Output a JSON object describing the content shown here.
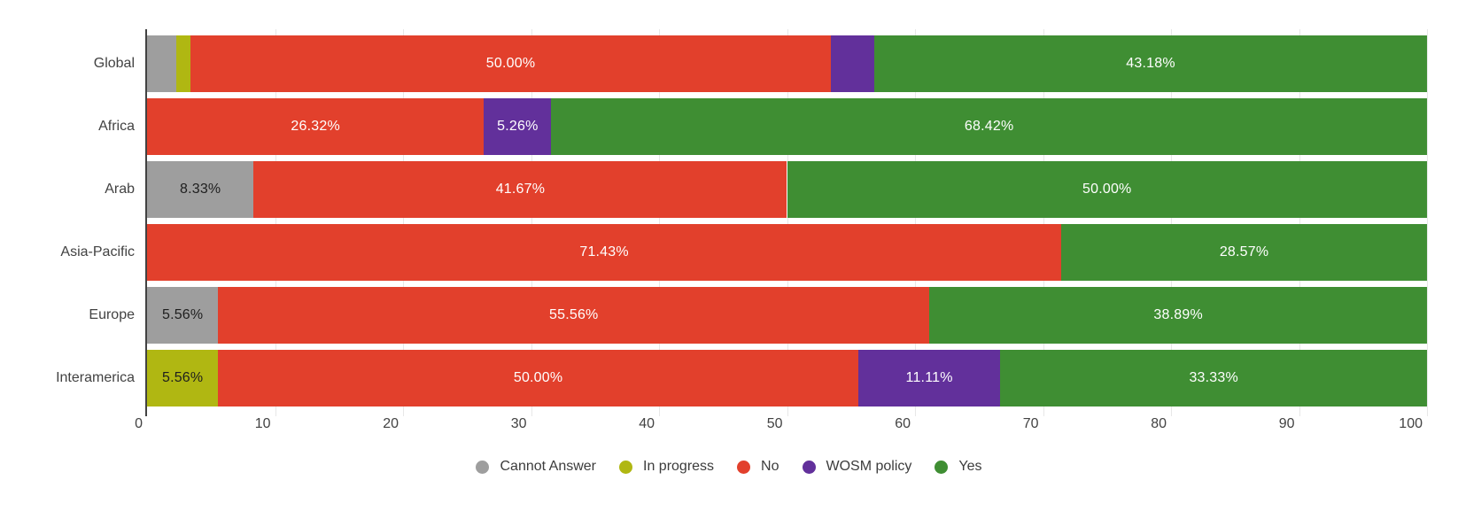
{
  "chart_data": {
    "type": "bar",
    "stacked": true,
    "orientation": "horizontal",
    "title": "",
    "categories": [
      "Global",
      "Africa",
      "Arab",
      "Asia-Pacific",
      "Europe",
      "Interamerica"
    ],
    "series": [
      {
        "name": "Cannot Answer",
        "color": "#9e9e9e",
        "label_text": "dark",
        "values": [
          2.27,
          0,
          8.33,
          0,
          5.56,
          0
        ]
      },
      {
        "name": "In progress",
        "color": "#b0b712",
        "label_text": "dark",
        "values": [
          1.14,
          0,
          0,
          0,
          0,
          5.56
        ]
      },
      {
        "name": "No",
        "color": "#e2402c",
        "label_text": "light",
        "values": [
          50.0,
          26.32,
          41.67,
          71.43,
          55.56,
          50.0
        ]
      },
      {
        "name": "WOSM policy",
        "color": "#62309b",
        "label_text": "light",
        "values": [
          3.41,
          5.26,
          0,
          0,
          0,
          11.11
        ]
      },
      {
        "name": "Yes",
        "color": "#3f8e33",
        "label_text": "light",
        "values": [
          43.18,
          68.42,
          50.0,
          28.57,
          38.89,
          33.33
        ]
      }
    ],
    "visible_segment_labels": [
      [
        "50.00%",
        "43.18%"
      ],
      [
        "26.32%",
        "5.26%",
        "68.42%"
      ],
      [
        "8.33%",
        "41.67%",
        "50.00%"
      ],
      [
        "71.43%",
        "28.57%"
      ],
      [
        "5.56%",
        "55.56%",
        "38.89%"
      ],
      [
        "5.56%",
        "50.00%",
        "11.11%",
        "33.33%"
      ]
    ],
    "value_suffix": "%",
    "value_decimals": 2,
    "label_min_value": 5,
    "xlim": [
      0,
      100
    ],
    "x_ticks": [
      "0",
      "10",
      "20",
      "30",
      "40",
      "50",
      "60",
      "70",
      "80",
      "90",
      "100"
    ],
    "grid": true,
    "legend_position": "bottom"
  },
  "colors": {
    "background": "#ffffff",
    "axis_line": "#424242",
    "grid_line": "#e7e7e7",
    "tick_label": "#424242",
    "category_label": "#424242",
    "segment_label_light": "#ffffff",
    "segment_label_dark": "#1e1e1e",
    "legend_label": "#3c3c3c"
  }
}
